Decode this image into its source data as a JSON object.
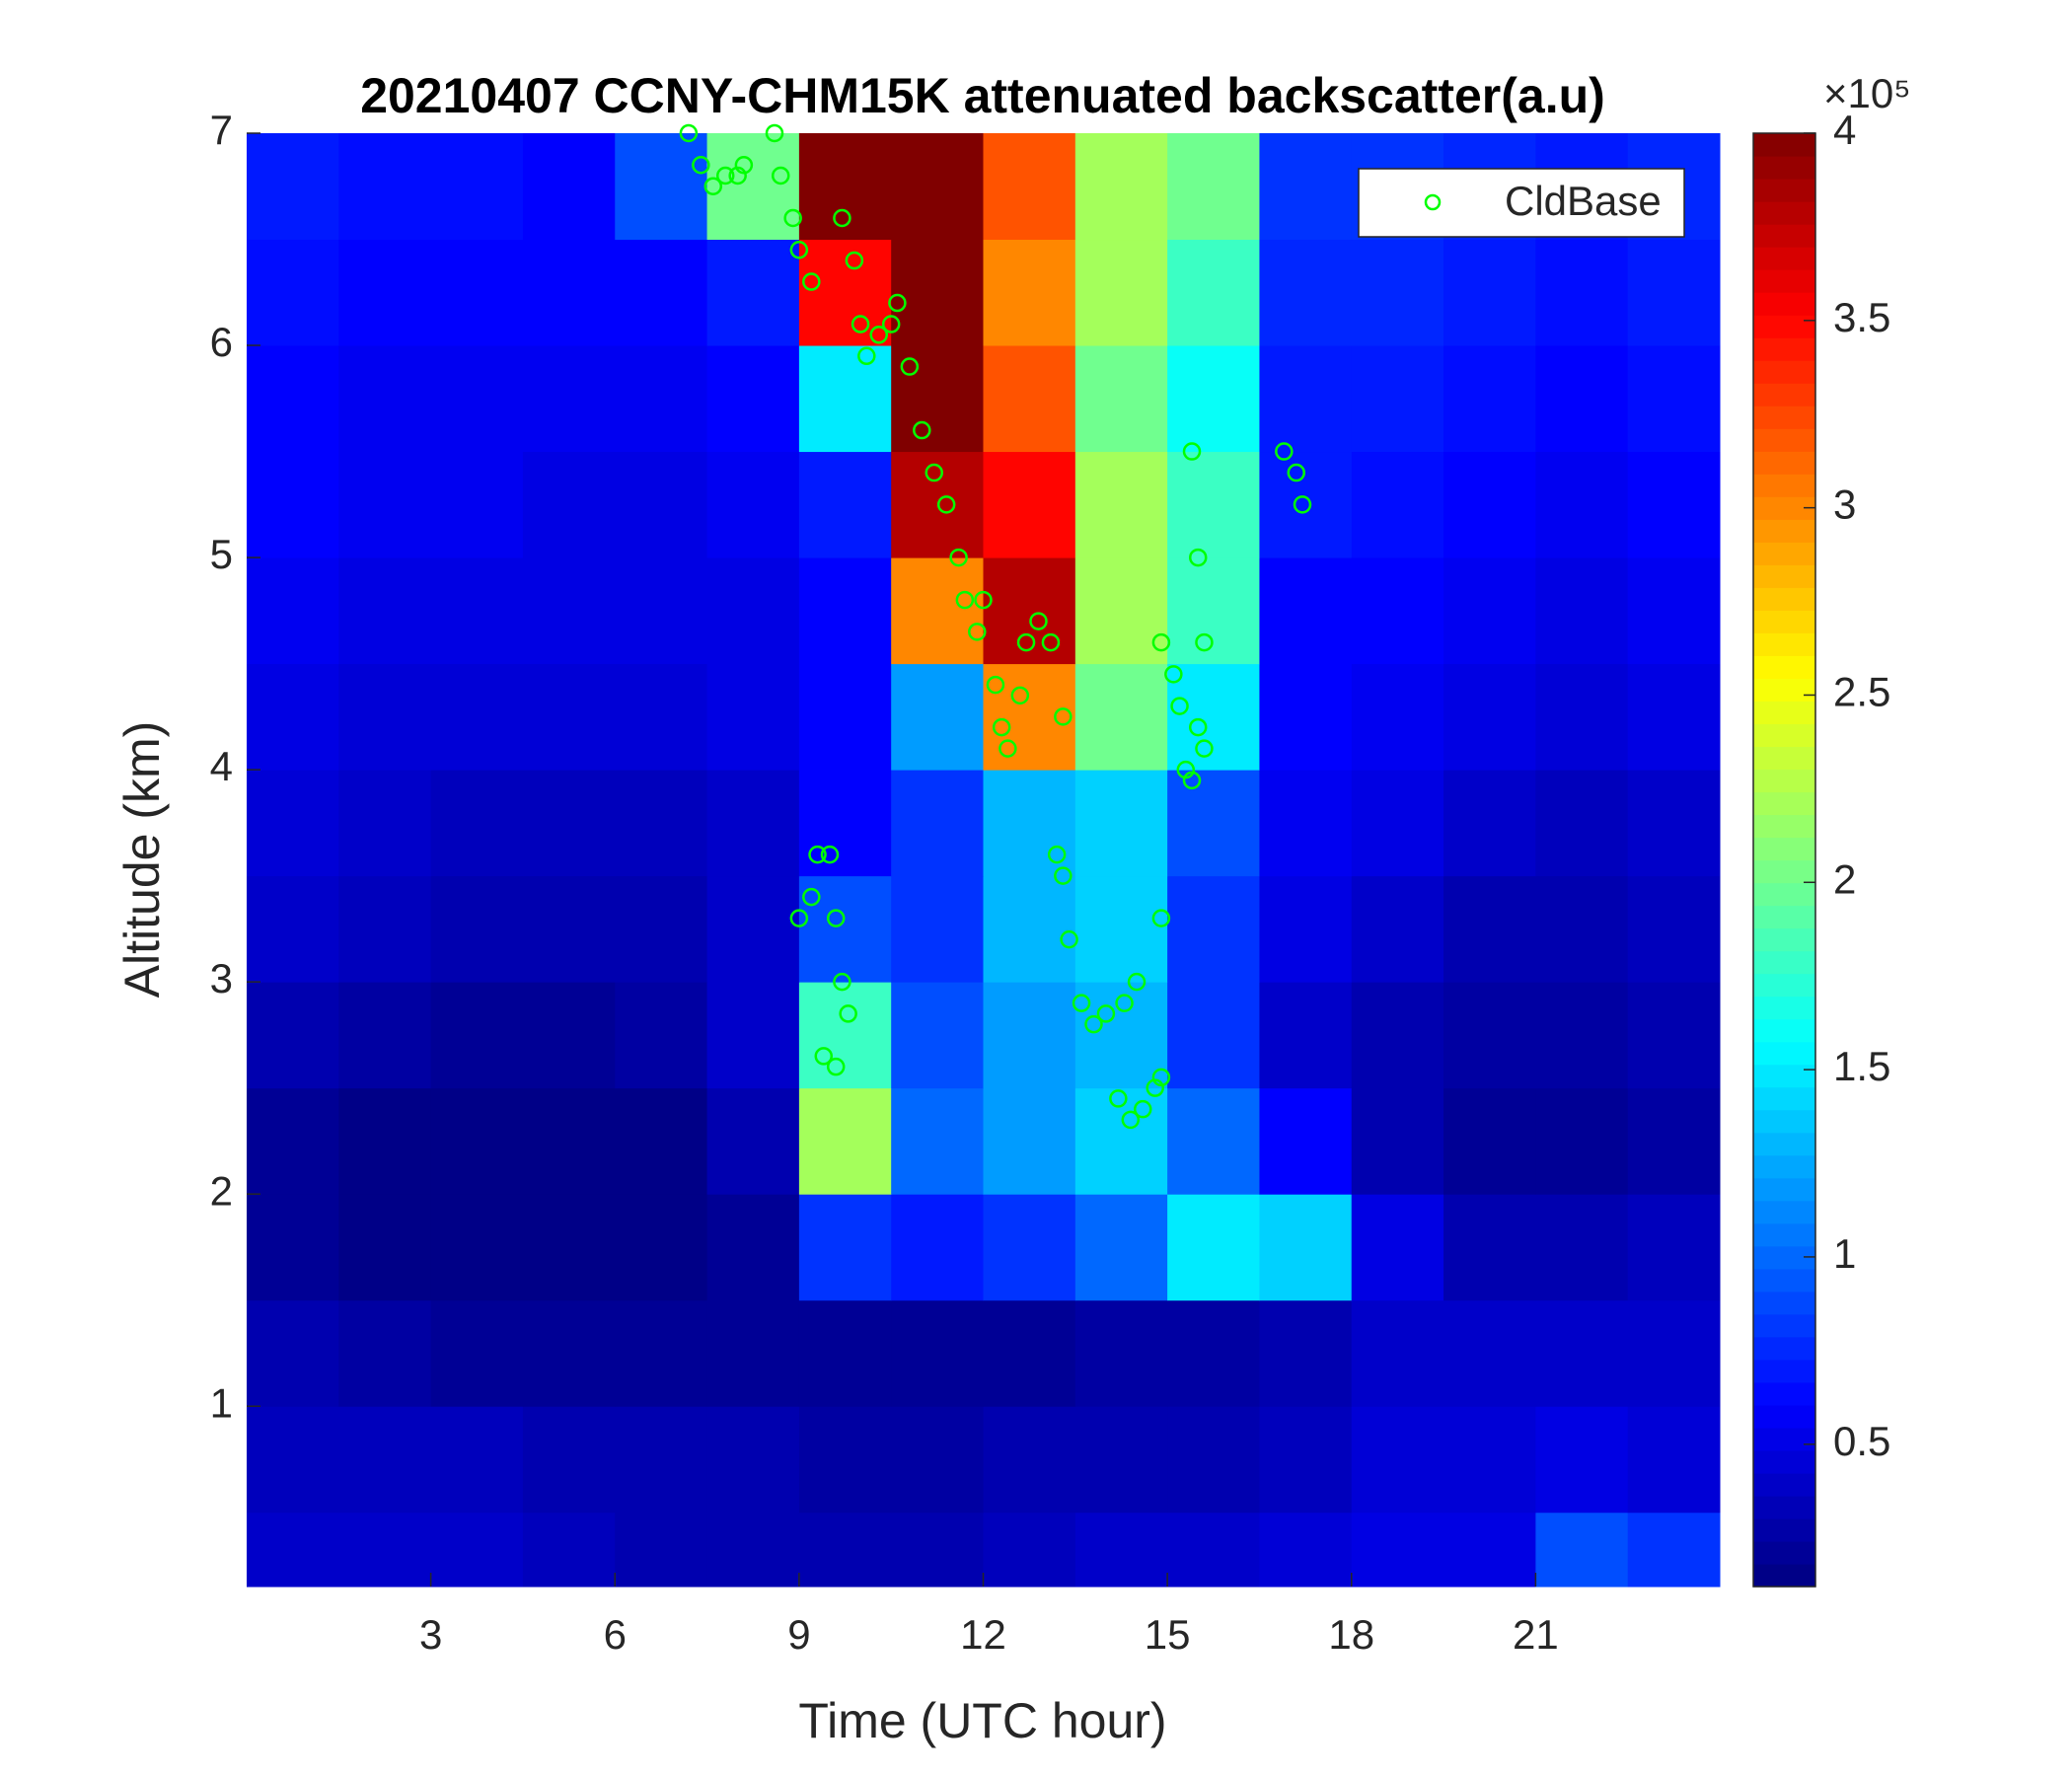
{
  "chart_data": {
    "type": "heatmap",
    "title": "20210407 CCNY-CHM15K attenuated backscatter(a.u)",
    "x_label": "Time (UTC hour)",
    "y_label": "Altitude (km)",
    "xlim": [
      0,
      24
    ],
    "ylim": [
      0.15,
      7
    ],
    "xticks": [
      3,
      6,
      9,
      12,
      15,
      18,
      21
    ],
    "yticks": [
      1,
      2,
      3,
      4,
      5,
      6,
      7
    ],
    "colormap": "jet",
    "clim": [
      0.12,
      4
    ],
    "colorbar_ticks": [
      0.5,
      1,
      1.5,
      2,
      2.5,
      3,
      3.5,
      4
    ],
    "colorbar_exponent_label": "×10⁵",
    "x_edges": [
      0,
      1.5,
      3,
      4.5,
      6,
      7.5,
      9,
      10.5,
      12,
      13.5,
      15,
      16.5,
      18,
      19.5,
      21,
      22.5,
      24
    ],
    "y_edges": [
      0.15,
      0.5,
      1,
      1.5,
      2,
      2.5,
      3,
      3.5,
      4,
      4.5,
      5,
      5.5,
      6,
      6.5,
      7
    ],
    "values": [
      [
        0.4,
        0.4,
        0.4,
        0.35,
        0.3,
        0.3,
        0.3,
        0.3,
        0.35,
        0.4,
        0.4,
        0.45,
        0.5,
        0.5,
        0.9,
        0.8
      ],
      [
        0.35,
        0.35,
        0.35,
        0.3,
        0.3,
        0.3,
        0.25,
        0.25,
        0.3,
        0.3,
        0.3,
        0.35,
        0.45,
        0.45,
        0.5,
        0.45
      ],
      [
        0.3,
        0.25,
        0.2,
        0.2,
        0.2,
        0.2,
        0.2,
        0.2,
        0.2,
        0.25,
        0.25,
        0.3,
        0.4,
        0.4,
        0.4,
        0.4
      ],
      [
        0.2,
        0.15,
        0.15,
        0.15,
        0.15,
        0.2,
        0.8,
        0.7,
        0.8,
        1.0,
        1.5,
        1.4,
        0.5,
        0.3,
        0.3,
        0.35
      ],
      [
        0.2,
        0.15,
        0.15,
        0.15,
        0.15,
        0.3,
        2.2,
        1.0,
        1.2,
        1.4,
        1.0,
        0.6,
        0.3,
        0.2,
        0.2,
        0.25
      ],
      [
        0.3,
        0.25,
        0.2,
        0.2,
        0.25,
        0.4,
        1.8,
        0.9,
        1.2,
        1.3,
        0.8,
        0.4,
        0.3,
        0.25,
        0.25,
        0.3
      ],
      [
        0.4,
        0.35,
        0.3,
        0.3,
        0.3,
        0.4,
        0.9,
        0.8,
        1.3,
        1.4,
        0.8,
        0.5,
        0.4,
        0.3,
        0.3,
        0.35
      ],
      [
        0.45,
        0.4,
        0.35,
        0.35,
        0.35,
        0.4,
        0.6,
        0.8,
        1.3,
        1.4,
        0.9,
        0.55,
        0.5,
        0.4,
        0.35,
        0.4
      ],
      [
        0.5,
        0.45,
        0.45,
        0.45,
        0.45,
        0.5,
        0.6,
        1.2,
        3.0,
        2.0,
        1.5,
        0.6,
        0.55,
        0.5,
        0.45,
        0.5
      ],
      [
        0.55,
        0.5,
        0.5,
        0.5,
        0.5,
        0.5,
        0.6,
        3.0,
        3.8,
        2.2,
        1.8,
        0.6,
        0.6,
        0.55,
        0.5,
        0.55
      ],
      [
        0.6,
        0.55,
        0.55,
        0.5,
        0.5,
        0.55,
        0.7,
        3.8,
        3.5,
        2.2,
        1.8,
        0.7,
        0.65,
        0.6,
        0.55,
        0.6
      ],
      [
        0.6,
        0.55,
        0.55,
        0.55,
        0.55,
        0.6,
        1.5,
        4.0,
        3.2,
        2.0,
        1.6,
        0.7,
        0.7,
        0.65,
        0.6,
        0.65
      ],
      [
        0.65,
        0.6,
        0.6,
        0.6,
        0.6,
        0.7,
        3.5,
        4.0,
        3.0,
        2.2,
        1.8,
        0.75,
        0.75,
        0.7,
        0.65,
        0.7
      ],
      [
        0.7,
        0.65,
        0.65,
        0.6,
        0.9,
        2.0,
        4.0,
        4.0,
        3.2,
        2.2,
        2.0,
        0.8,
        0.8,
        0.75,
        0.7,
        0.75
      ]
    ],
    "overlay": {
      "type": "scatter",
      "name": "CldBase",
      "color": "#00ff00",
      "x": [
        7.2,
        7.4,
        7.6,
        7.8,
        8.0,
        8.1,
        8.6,
        8.7,
        8.9,
        9.0,
        9.2,
        9.7,
        9.9,
        10.0,
        10.1,
        10.3,
        10.5,
        10.6,
        10.8,
        11.0,
        11.2,
        11.4,
        11.6,
        11.7,
        11.9,
        12.0,
        12.2,
        12.3,
        12.4,
        12.6,
        12.7,
        12.9,
        13.1,
        13.3,
        9.0,
        9.2,
        9.3,
        9.5,
        9.6,
        9.7,
        9.8,
        9.4,
        9.6,
        13.2,
        13.3,
        13.4,
        13.6,
        13.8,
        14.0,
        14.3,
        14.5,
        14.2,
        14.4,
        14.6,
        14.8,
        14.9,
        14.9,
        14.9,
        15.1,
        15.2,
        15.3,
        15.4,
        15.5,
        15.6,
        15.5,
        15.4,
        15.6,
        16.9,
        17.1,
        17.2
      ],
      "y": [
        7.0,
        6.85,
        6.75,
        6.8,
        6.8,
        6.85,
        7.0,
        6.8,
        6.6,
        6.45,
        6.3,
        6.6,
        6.4,
        6.1,
        5.95,
        6.05,
        6.1,
        6.2,
        5.9,
        5.6,
        5.4,
        5.25,
        5.0,
        4.8,
        4.65,
        4.8,
        4.4,
        4.2,
        4.1,
        4.35,
        4.6,
        4.7,
        4.6,
        4.25,
        3.3,
        3.4,
        3.6,
        3.6,
        3.3,
        3.0,
        2.85,
        2.65,
        2.6,
        3.6,
        3.5,
        3.2,
        2.9,
        2.8,
        2.85,
        2.9,
        3.0,
        2.45,
        2.35,
        2.4,
        2.5,
        2.55,
        3.3,
        4.6,
        4.45,
        4.3,
        4.0,
        3.95,
        4.2,
        4.6,
        5.0,
        5.5,
        4.1,
        5.5,
        5.4,
        5.25
      ]
    },
    "legend": "upper right"
  }
}
